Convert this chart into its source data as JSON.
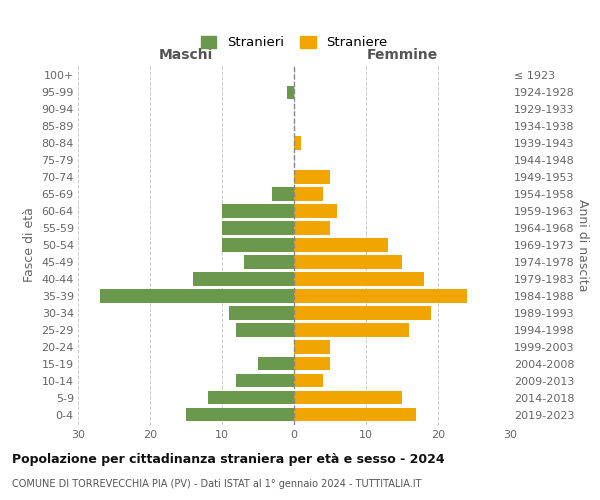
{
  "age_groups": [
    "0-4",
    "5-9",
    "10-14",
    "15-19",
    "20-24",
    "25-29",
    "30-34",
    "35-39",
    "40-44",
    "45-49",
    "50-54",
    "55-59",
    "60-64",
    "65-69",
    "70-74",
    "75-79",
    "80-84",
    "85-89",
    "90-94",
    "95-99",
    "100+"
  ],
  "birth_years": [
    "2019-2023",
    "2014-2018",
    "2009-2013",
    "2004-2008",
    "1999-2003",
    "1994-1998",
    "1989-1993",
    "1984-1988",
    "1979-1983",
    "1974-1978",
    "1969-1973",
    "1964-1968",
    "1959-1963",
    "1954-1958",
    "1949-1953",
    "1944-1948",
    "1939-1943",
    "1934-1938",
    "1929-1933",
    "1924-1928",
    "≤ 1923"
  ],
  "males": [
    15,
    12,
    8,
    5,
    0,
    8,
    9,
    27,
    14,
    7,
    10,
    10,
    10,
    3,
    0,
    0,
    0,
    0,
    0,
    1,
    0
  ],
  "females": [
    17,
    15,
    4,
    5,
    5,
    16,
    19,
    24,
    18,
    15,
    13,
    5,
    6,
    4,
    5,
    0,
    1,
    0,
    0,
    0,
    0
  ],
  "male_color": "#6a994e",
  "female_color": "#f0a500",
  "xlim": 30,
  "title": "Popolazione per cittadinanza straniera per età e sesso - 2024",
  "subtitle": "COMUNE DI TORREVECCHIA PIA (PV) - Dati ISTAT al 1° gennaio 2024 - TUTTITALIA.IT",
  "xlabel_left": "Maschi",
  "xlabel_right": "Femmine",
  "ylabel_left": "Fasce di età",
  "ylabel_right": "Anni di nascita",
  "legend_male": "Stranieri",
  "legend_female": "Straniere",
  "background_color": "#ffffff",
  "grid_color": "#cccccc"
}
